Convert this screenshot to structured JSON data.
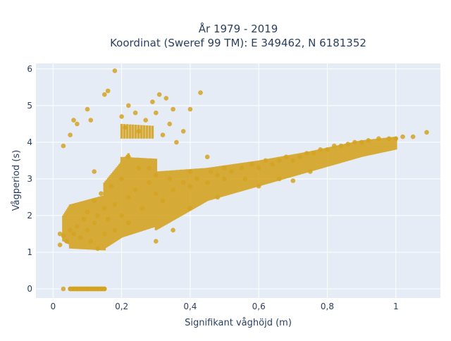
{
  "chart_data": {
    "type": "scatter",
    "title_line1": "År 1979 - 2019",
    "title_line2": "Koordinat (Sweref 99 TM): E 349462, N 6181352",
    "xlabel": "Signifikant våghöjd (m)",
    "ylabel": "Vågperiod (s)",
    "xlim": [
      -0.05,
      1.13
    ],
    "ylim": [
      -0.25,
      6.15
    ],
    "x_ticks": [
      0,
      0.2,
      0.4,
      0.6,
      0.8,
      1
    ],
    "x_tick_labels": [
      "0",
      "0,2",
      "0,4",
      "0,6",
      "0,8",
      "1"
    ],
    "y_ticks": [
      0,
      1,
      2,
      3,
      4,
      5,
      6
    ],
    "y_tick_labels": [
      "0",
      "1",
      "2",
      "3",
      "4",
      "5",
      "6"
    ],
    "grid": true,
    "legend": "none",
    "marker_color": "#D4A321",
    "plot_bgcolor": "#E5ECF6",
    "series": [
      {
        "points": [
          [
            0.03,
            0.0
          ],
          [
            0.05,
            0.0
          ],
          [
            0.06,
            0.0
          ],
          [
            0.07,
            0.0
          ],
          [
            0.08,
            0.0
          ],
          [
            0.09,
            0.0
          ],
          [
            0.1,
            0.0
          ],
          [
            0.11,
            0.0
          ],
          [
            0.12,
            0.0
          ],
          [
            0.13,
            0.0
          ],
          [
            0.14,
            0.0
          ],
          [
            0.15,
            0.0
          ],
          [
            0.02,
            1.2
          ],
          [
            0.02,
            1.5
          ],
          [
            0.03,
            1.45
          ],
          [
            0.04,
            1.3
          ],
          [
            0.05,
            1.6
          ],
          [
            0.06,
            1.5
          ],
          [
            0.07,
            1.7
          ],
          [
            0.08,
            1.4
          ],
          [
            0.09,
            1.9
          ],
          [
            0.1,
            1.6
          ],
          [
            0.1,
            2.1
          ],
          [
            0.11,
            1.3
          ],
          [
            0.12,
            1.8
          ],
          [
            0.12,
            2.4
          ],
          [
            0.13,
            1.1
          ],
          [
            0.13,
            2.0
          ],
          [
            0.14,
            2.6
          ],
          [
            0.15,
            1.5
          ],
          [
            0.15,
            2.2
          ],
          [
            0.16,
            1.9
          ],
          [
            0.17,
            2.8
          ],
          [
            0.18,
            1.6
          ],
          [
            0.18,
            2.3
          ],
          [
            0.2,
            2.0
          ],
          [
            0.2,
            3.0
          ],
          [
            0.22,
            2.5
          ],
          [
            0.22,
            1.8
          ],
          [
            0.24,
            2.7
          ],
          [
            0.25,
            3.3
          ],
          [
            0.26,
            2.2
          ],
          [
            0.28,
            2.9
          ],
          [
            0.3,
            2.6
          ],
          [
            0.3,
            3.1
          ],
          [
            0.32,
            2.4
          ],
          [
            0.34,
            3.0
          ],
          [
            0.35,
            2.7
          ],
          [
            0.38,
            2.9
          ],
          [
            0.4,
            2.8
          ],
          [
            0.4,
            3.2
          ],
          [
            0.42,
            3.0
          ],
          [
            0.45,
            2.9
          ],
          [
            0.46,
            3.2
          ],
          [
            0.48,
            3.1
          ],
          [
            0.5,
            3.0
          ],
          [
            0.5,
            3.3
          ],
          [
            0.52,
            3.2
          ],
          [
            0.55,
            3.3
          ],
          [
            0.56,
            3.0
          ],
          [
            0.58,
            3.4
          ],
          [
            0.6,
            3.3
          ],
          [
            0.62,
            3.5
          ],
          [
            0.64,
            3.4
          ],
          [
            0.66,
            3.5
          ],
          [
            0.68,
            3.6
          ],
          [
            0.7,
            3.5
          ],
          [
            0.72,
            3.6
          ],
          [
            0.74,
            3.7
          ],
          [
            0.76,
            3.7
          ],
          [
            0.78,
            3.8
          ],
          [
            0.8,
            3.8
          ],
          [
            0.82,
            3.9
          ],
          [
            0.84,
            3.9
          ],
          [
            0.86,
            3.95
          ],
          [
            0.88,
            4.0
          ],
          [
            0.9,
            4.0
          ],
          [
            0.92,
            4.05
          ],
          [
            0.95,
            4.1
          ],
          [
            0.98,
            4.1
          ],
          [
            1.0,
            4.1
          ],
          [
            1.02,
            4.15
          ],
          [
            1.05,
            4.15
          ],
          [
            1.09,
            4.27
          ],
          [
            0.03,
            3.9
          ],
          [
            0.05,
            4.2
          ],
          [
            0.06,
            4.6
          ],
          [
            0.07,
            4.5
          ],
          [
            0.1,
            4.9
          ],
          [
            0.11,
            4.6
          ],
          [
            0.15,
            5.3
          ],
          [
            0.16,
            5.4
          ],
          [
            0.18,
            5.95
          ],
          [
            0.2,
            4.7
          ],
          [
            0.21,
            4.4
          ],
          [
            0.22,
            5.0
          ],
          [
            0.24,
            4.8
          ],
          [
            0.25,
            4.3
          ],
          [
            0.27,
            4.6
          ],
          [
            0.29,
            5.1
          ],
          [
            0.3,
            4.8
          ],
          [
            0.31,
            5.3
          ],
          [
            0.32,
            4.2
          ],
          [
            0.33,
            5.2
          ],
          [
            0.34,
            4.5
          ],
          [
            0.35,
            4.9
          ],
          [
            0.36,
            4.0
          ],
          [
            0.38,
            4.3
          ],
          [
            0.4,
            4.9
          ],
          [
            0.43,
            5.35
          ],
          [
            0.12,
            3.2
          ],
          [
            0.22,
            3.6
          ],
          [
            0.28,
            3.3
          ],
          [
            0.3,
            1.3
          ],
          [
            0.35,
            1.6
          ],
          [
            0.4,
            2.2
          ],
          [
            0.45,
            3.6
          ],
          [
            0.48,
            2.5
          ],
          [
            0.6,
            2.8
          ],
          [
            0.66,
            3.0
          ],
          [
            0.7,
            2.95
          ],
          [
            0.75,
            3.2
          ]
        ]
      }
    ]
  }
}
